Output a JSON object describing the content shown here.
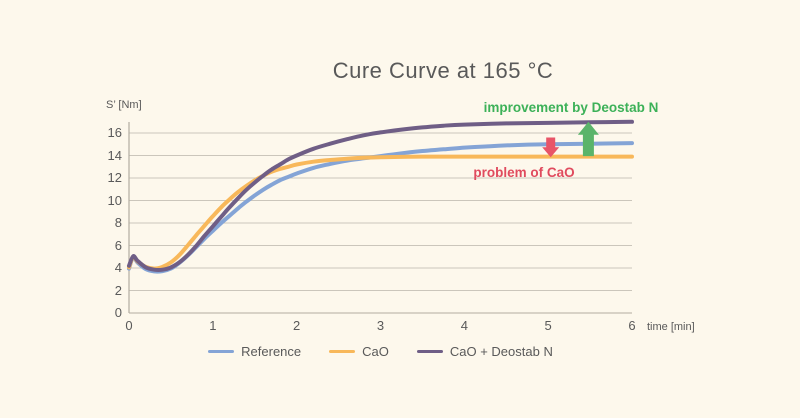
{
  "title": "Cure Curve at 165 °C",
  "colors": {
    "background": "#fdf8ec",
    "grid": "#cbc6bb",
    "axis": "#b3ada1",
    "text": "#595959"
  },
  "chart_data": {
    "type": "line",
    "title": "Cure Curve at 165 °C",
    "xlabel": "time [min]",
    "ylabel": "S’ [Nm]",
    "xlim": [
      0,
      6
    ],
    "ylim": [
      0,
      16
    ],
    "x_ticks": [
      0,
      1,
      2,
      3,
      4,
      5,
      6
    ],
    "y_ticks": [
      0,
      2,
      4,
      6,
      8,
      10,
      12,
      14,
      16
    ],
    "grid": "horizontal",
    "legend_position": "bottom",
    "series": [
      {
        "name": "Reference",
        "color": "#84a4d6",
        "points": [
          [
            0,
            3.95
          ],
          [
            0.05,
            4.95
          ],
          [
            0.1,
            4.5
          ],
          [
            0.2,
            3.9
          ],
          [
            0.3,
            3.7
          ],
          [
            0.4,
            3.72
          ],
          [
            0.5,
            3.95
          ],
          [
            0.6,
            4.45
          ],
          [
            0.7,
            5.1
          ],
          [
            0.8,
            5.85
          ],
          [
            0.9,
            6.6
          ],
          [
            1,
            7.3
          ],
          [
            1.1,
            8.0
          ],
          [
            1.2,
            8.65
          ],
          [
            1.3,
            9.3
          ],
          [
            1.4,
            9.9
          ],
          [
            1.5,
            10.45
          ],
          [
            1.6,
            10.95
          ],
          [
            1.7,
            11.4
          ],
          [
            1.8,
            11.8
          ],
          [
            1.9,
            12.1
          ],
          [
            2,
            12.4
          ],
          [
            2.2,
            12.9
          ],
          [
            2.4,
            13.25
          ],
          [
            2.6,
            13.55
          ],
          [
            2.8,
            13.75
          ],
          [
            3,
            13.95
          ],
          [
            3.25,
            14.2
          ],
          [
            3.5,
            14.4
          ],
          [
            3.75,
            14.55
          ],
          [
            4,
            14.7
          ],
          [
            4.25,
            14.8
          ],
          [
            4.5,
            14.9
          ],
          [
            5,
            15.0
          ],
          [
            5.5,
            15.05
          ],
          [
            6,
            15.1
          ]
        ]
      },
      {
        "name": "CaO",
        "color": "#f8b85a",
        "points": [
          [
            0,
            4.05
          ],
          [
            0.05,
            5.0
          ],
          [
            0.1,
            4.6
          ],
          [
            0.2,
            4.1
          ],
          [
            0.3,
            3.95
          ],
          [
            0.4,
            4.1
          ],
          [
            0.5,
            4.5
          ],
          [
            0.6,
            5.15
          ],
          [
            0.7,
            6.0
          ],
          [
            0.8,
            6.9
          ],
          [
            0.9,
            7.75
          ],
          [
            1,
            8.6
          ],
          [
            1.1,
            9.4
          ],
          [
            1.2,
            10.1
          ],
          [
            1.3,
            10.75
          ],
          [
            1.4,
            11.3
          ],
          [
            1.5,
            11.8
          ],
          [
            1.6,
            12.2
          ],
          [
            1.7,
            12.55
          ],
          [
            1.8,
            12.8
          ],
          [
            1.9,
            13.0
          ],
          [
            2,
            13.2
          ],
          [
            2.2,
            13.45
          ],
          [
            2.4,
            13.6
          ],
          [
            2.6,
            13.72
          ],
          [
            2.8,
            13.8
          ],
          [
            3,
            13.85
          ],
          [
            3.5,
            13.9
          ],
          [
            4,
            13.9
          ],
          [
            4.5,
            13.9
          ],
          [
            5,
            13.9
          ],
          [
            5.5,
            13.9
          ],
          [
            6,
            13.9
          ]
        ]
      },
      {
        "name": "CaO + Deostab N",
        "color": "#6f5e86",
        "points": [
          [
            0,
            4.2
          ],
          [
            0.05,
            5.05
          ],
          [
            0.1,
            4.65
          ],
          [
            0.2,
            4.05
          ],
          [
            0.3,
            3.85
          ],
          [
            0.4,
            3.85
          ],
          [
            0.5,
            4.05
          ],
          [
            0.6,
            4.5
          ],
          [
            0.7,
            5.15
          ],
          [
            0.8,
            5.95
          ],
          [
            0.9,
            6.85
          ],
          [
            1,
            7.7
          ],
          [
            1.1,
            8.55
          ],
          [
            1.2,
            9.4
          ],
          [
            1.3,
            10.2
          ],
          [
            1.4,
            10.95
          ],
          [
            1.5,
            11.6
          ],
          [
            1.6,
            12.2
          ],
          [
            1.7,
            12.75
          ],
          [
            1.8,
            13.2
          ],
          [
            1.9,
            13.65
          ],
          [
            2,
            14.0
          ],
          [
            2.2,
            14.6
          ],
          [
            2.4,
            15.05
          ],
          [
            2.6,
            15.45
          ],
          [
            2.8,
            15.8
          ],
          [
            3,
            16.05
          ],
          [
            3.25,
            16.3
          ],
          [
            3.5,
            16.5
          ],
          [
            3.75,
            16.65
          ],
          [
            4,
            16.75
          ],
          [
            4.5,
            16.85
          ],
          [
            5,
            16.9
          ],
          [
            5.5,
            16.95
          ],
          [
            6,
            17.0
          ]
        ]
      }
    ],
    "annotations": [
      {
        "text": "improvement by Deostab N",
        "text_color": "#3cb158",
        "arrow": "up",
        "arrow_color": "#5ab46a",
        "arrow_x": 5.48,
        "arrow_from_y": 13.95,
        "arrow_to_y": 17.0
      },
      {
        "text": "problem of CaO",
        "text_color": "#e04b5e",
        "arrow": "down",
        "arrow_color": "#e85568",
        "arrow_x": 5.03,
        "arrow_from_y": 15.6,
        "arrow_to_y": 13.85
      }
    ]
  }
}
